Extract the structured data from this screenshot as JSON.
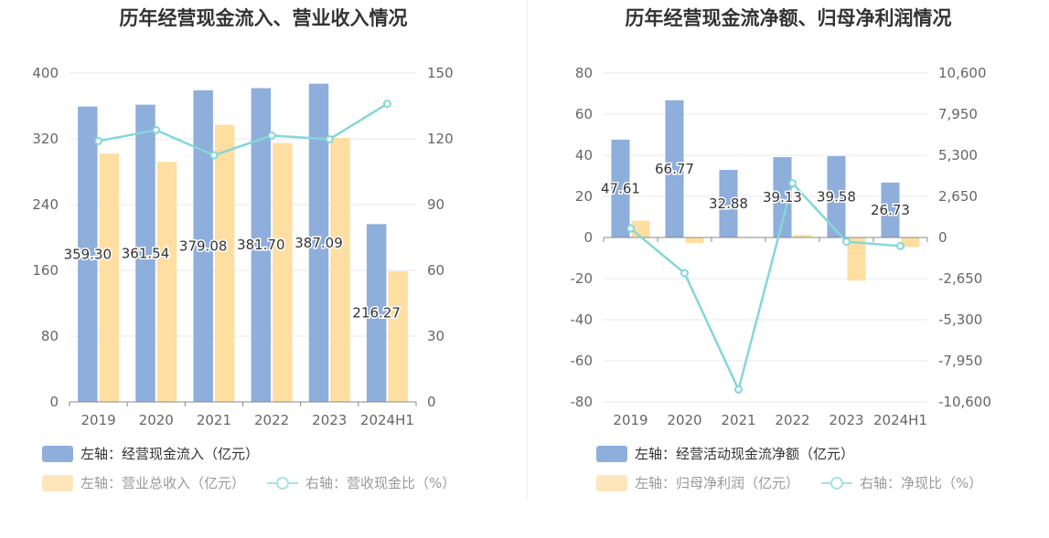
{
  "chart_data": [
    {
      "type": "bar",
      "title": "历年经营现金流入、营业收入情况",
      "categories": [
        "2019",
        "2020",
        "2021",
        "2022",
        "2023",
        "2024H1"
      ],
      "left_axis": {
        "ticks": [
          "0",
          "80",
          "160",
          "240",
          "320",
          "400"
        ],
        "ylim": [
          0,
          400
        ]
      },
      "right_axis": {
        "ticks": [
          "0",
          "30",
          "60",
          "90",
          "120",
          "150"
        ],
        "ylim": [
          0,
          150
        ]
      },
      "series": [
        {
          "name": "左轴：经营现金流入（亿元）",
          "type": "bar",
          "axis": "left",
          "color": "#8eaedc",
          "values": [
            359.3,
            361.54,
            379.08,
            381.7,
            387.09,
            216.27
          ],
          "labels": [
            "359.30",
            "361.54",
            "379.08",
            "381.70",
            "387.09",
            "216.27"
          ]
        },
        {
          "name": "左轴：营业总收入（亿元）",
          "type": "bar",
          "axis": "left",
          "color": "#ffdea2",
          "values": [
            302,
            292,
            337,
            315,
            321,
            159
          ]
        },
        {
          "name": "右轴：营收现金比（%）",
          "type": "line",
          "axis": "right",
          "color": "#86d6d8",
          "values": [
            119,
            124,
            112.5,
            121.5,
            119.8,
            136
          ]
        }
      ]
    },
    {
      "type": "bar",
      "title": "历年经营现金流净额、归母净利润情况",
      "categories": [
        "2019",
        "2020",
        "2021",
        "2022",
        "2023",
        "2024H1"
      ],
      "left_axis": {
        "ticks": [
          "-80",
          "-60",
          "-40",
          "-20",
          "0",
          "20",
          "40",
          "60",
          "80"
        ],
        "ylim": [
          -80,
          80
        ]
      },
      "right_axis": {
        "ticks": [
          "-10,600",
          "-7,950",
          "-5,300",
          "-2,650",
          "0",
          "2,650",
          "5,300",
          "7,950",
          "10,600"
        ],
        "ylim": [
          -10600,
          10600
        ]
      },
      "series": [
        {
          "name": "左轴：经营活动现金流净额（亿元）",
          "type": "bar",
          "axis": "left",
          "color": "#8eaedc",
          "values": [
            47.61,
            66.77,
            32.88,
            39.13,
            39.58,
            26.73
          ],
          "labels": [
            "47.61",
            "66.77",
            "32.88",
            "39.13",
            "39.58",
            "26.73"
          ]
        },
        {
          "name": "左轴：归母净利润（亿元）",
          "type": "bar",
          "axis": "left",
          "color": "#ffdea2",
          "values": [
            8.2,
            -2.8,
            0.3,
            1.2,
            -21,
            -4.6
          ]
        },
        {
          "name": "右轴：净现比（%）",
          "type": "line",
          "axis": "right",
          "color": "#86d6d8",
          "values": [
            580,
            -2300,
            -9800,
            3500,
            -270,
            -550
          ]
        }
      ]
    }
  ],
  "legends": [
    {
      "row1": [
        {
          "label": "左轴：经营现金流入（亿元）",
          "kind": "rect",
          "color": "#8eaedc"
        }
      ],
      "row2": [
        {
          "label": "左轴：营业总收入（亿元）",
          "kind": "rect",
          "color": "#ffdea2"
        },
        {
          "label": "右轴：营收现金比（%）",
          "kind": "line",
          "color": "#86d6d8"
        }
      ]
    },
    {
      "row1": [
        {
          "label": "左轴：经营活动现金流净额（亿元）",
          "kind": "rect",
          "color": "#8eaedc"
        }
      ],
      "row2": [
        {
          "label": "左轴：归母净利润（亿元）",
          "kind": "rect",
          "color": "#ffdea2"
        },
        {
          "label": "右轴：净现比（%）",
          "kind": "line",
          "color": "#86d6d8"
        }
      ]
    }
  ]
}
